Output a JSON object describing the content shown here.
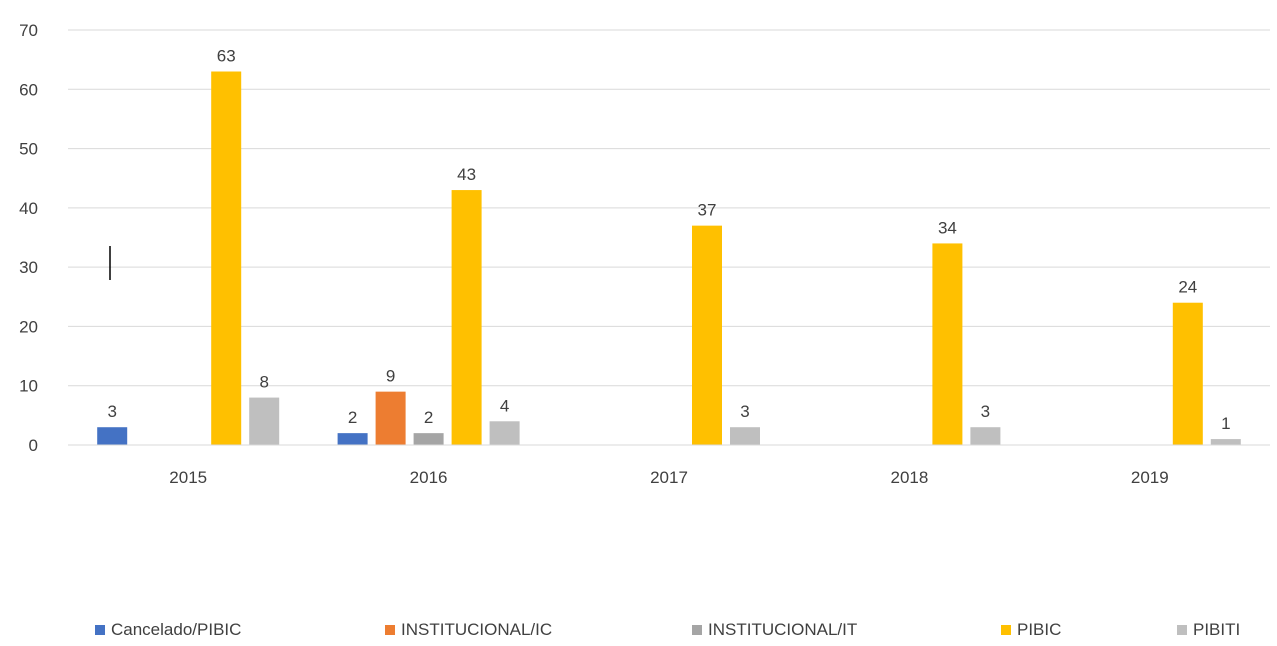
{
  "chart_data": {
    "type": "bar",
    "categories": [
      "2015",
      "2016",
      "2017",
      "2018",
      "2019"
    ],
    "series": [
      {
        "name": "Cancelado/PIBIC",
        "color": "#4472C4",
        "values": [
          3,
          2,
          null,
          null,
          null
        ]
      },
      {
        "name": "INSTITUCIONAL/IC",
        "color": "#ED7D31",
        "values": [
          null,
          9,
          null,
          null,
          null
        ]
      },
      {
        "name": "INSTITUCIONAL/IT",
        "color": "#A5A5A5",
        "values": [
          null,
          2,
          null,
          null,
          null
        ]
      },
      {
        "name": "PIBIC",
        "color": "#FFC000",
        "values": [
          63,
          43,
          37,
          34,
          24
        ]
      },
      {
        "name": "PIBITI",
        "color": "#BFBFBF",
        "values": [
          8,
          4,
          3,
          3,
          1
        ]
      }
    ],
    "y_ticks": [
      "0",
      "10",
      "20",
      "30",
      "40",
      "50",
      "60",
      "70"
    ],
    "ylim": [
      0,
      70
    ],
    "grid": true,
    "legend_position": "bottom"
  }
}
